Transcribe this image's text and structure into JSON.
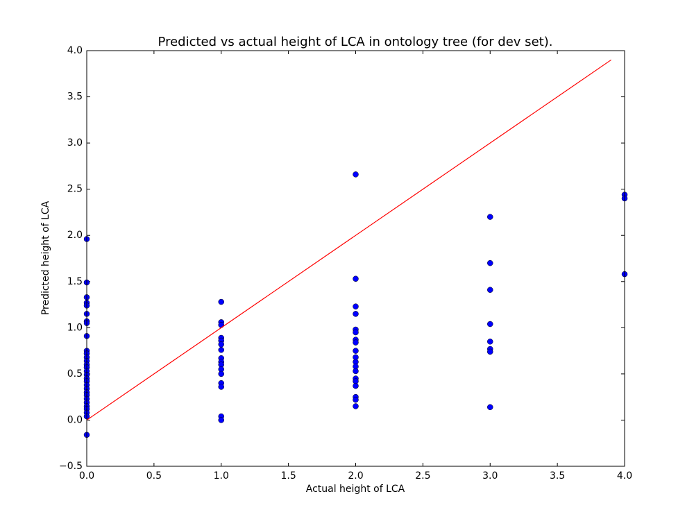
{
  "chart_data": {
    "type": "scatter",
    "title": "Predicted vs actual height of LCA in ontology tree (for dev set).",
    "x_label": "Actual height of LCA",
    "y_label": "Predicted height of LCA",
    "xlim": [
      0,
      4
    ],
    "ylim": [
      -0.5,
      4
    ],
    "xticks": [
      {
        "value": 0,
        "label": "0.0"
      },
      {
        "value": 0.5,
        "label": "0.5"
      },
      {
        "value": 1,
        "label": "1.0"
      },
      {
        "value": 1.5,
        "label": "1.5"
      },
      {
        "value": 2,
        "label": "2.0"
      },
      {
        "value": 2.5,
        "label": "2.5"
      },
      {
        "value": 3,
        "label": "3.0"
      },
      {
        "value": 3.5,
        "label": "3.5"
      },
      {
        "value": 4,
        "label": "4.0"
      }
    ],
    "yticks": [
      {
        "value": -0.5,
        "label": "−0.5"
      },
      {
        "value": 0,
        "label": "0.0"
      },
      {
        "value": 0.5,
        "label": "0.5"
      },
      {
        "value": 1,
        "label": "1.0"
      },
      {
        "value": 1.5,
        "label": "1.5"
      },
      {
        "value": 2,
        "label": "2.0"
      },
      {
        "value": 2.5,
        "label": "2.5"
      },
      {
        "value": 3,
        "label": "3.0"
      },
      {
        "value": 3.5,
        "label": "3.5"
      },
      {
        "value": 4,
        "label": "4.0"
      }
    ],
    "grid": false,
    "series": [
      {
        "type": "scatter",
        "color": "#0000ff",
        "x": [
          0,
          0,
          0,
          0,
          0,
          0,
          0,
          0,
          0,
          0,
          0,
          0,
          0,
          0,
          0,
          0,
          0,
          0,
          0,
          0,
          0,
          0,
          0,
          0,
          0,
          0,
          0,
          0,
          0,
          0,
          1,
          1,
          1,
          1,
          1,
          1,
          1,
          1,
          1,
          1,
          1,
          1,
          1,
          1,
          1,
          1,
          2,
          2,
          2,
          2,
          2,
          2,
          2,
          2,
          2,
          2,
          2,
          2,
          2,
          2,
          2,
          2,
          2,
          2,
          2,
          3,
          3,
          3,
          3,
          3,
          3,
          3,
          3,
          4,
          4,
          4
        ],
        "values": [
          1.96,
          1.49,
          1.33,
          1.27,
          1.24,
          1.15,
          1.07,
          1.05,
          0.91,
          0.75,
          0.72,
          0.68,
          0.64,
          0.6,
          0.57,
          0.53,
          0.49,
          0.45,
          0.42,
          0.38,
          0.34,
          0.3,
          0.27,
          0.23,
          0.19,
          0.15,
          0.12,
          0.08,
          0.04,
          -0.16,
          1.28,
          1.06,
          1.03,
          0.89,
          0.86,
          0.82,
          0.76,
          0.67,
          0.63,
          0.6,
          0.55,
          0.5,
          0.4,
          0.36,
          0.04,
          0.0,
          2.66,
          1.53,
          1.23,
          1.15,
          0.98,
          0.95,
          0.87,
          0.84,
          0.75,
          0.68,
          0.63,
          0.58,
          0.53,
          0.45,
          0.42,
          0.37,
          0.25,
          0.22,
          0.15,
          2.2,
          1.7,
          1.41,
          1.04,
          0.85,
          0.77,
          0.74,
          0.14,
          2.44,
          2.4,
          1.58
        ]
      },
      {
        "type": "line",
        "color": "#ff0000",
        "x": [
          0,
          3.9
        ],
        "values": [
          0,
          3.9
        ]
      }
    ]
  }
}
